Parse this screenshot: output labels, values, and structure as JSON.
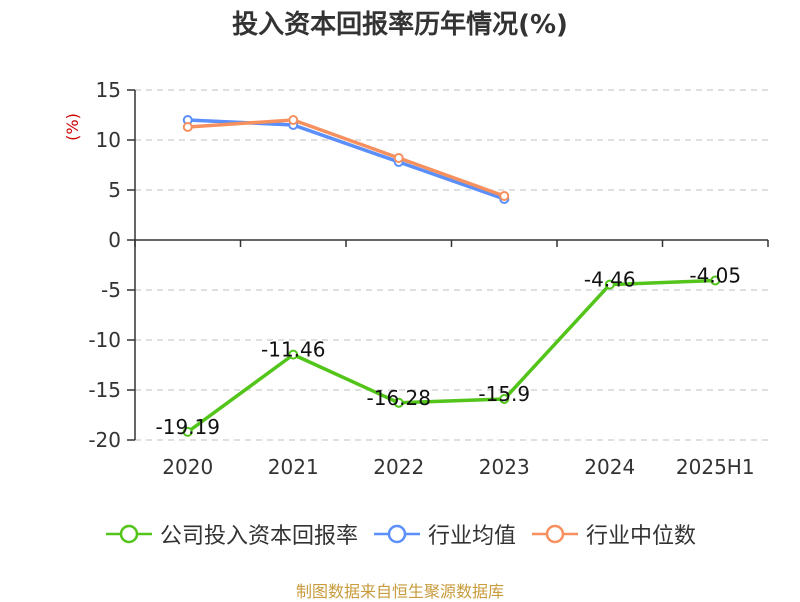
{
  "chart_data": {
    "type": "line",
    "title": "投入资本回报率历年情况(%)",
    "ylabel": "(%)",
    "categories": [
      "2020",
      "2021",
      "2022",
      "2023",
      "2024",
      "2025H1"
    ],
    "ylim": [
      -20,
      15
    ],
    "yticks": [
      15,
      10,
      5,
      0,
      -5,
      -10,
      -15,
      -20
    ],
    "grid": true,
    "legend_position": "bottom",
    "series": [
      {
        "name": "公司投入资本回报率",
        "color": "#52c41a",
        "values": [
          -19.19,
          -11.46,
          -16.28,
          -15.9,
          -4.46,
          -4.05
        ],
        "labels": [
          "-19.19",
          "-11.46",
          "-16.28",
          "-15.9",
          "-4.46",
          "-4.05"
        ]
      },
      {
        "name": "行业均值",
        "color": "#5b8ff9",
        "values": [
          12.0,
          11.5,
          7.8,
          4.1,
          null,
          null
        ]
      },
      {
        "name": "行业中位数",
        "color": "#f6905f",
        "values": [
          11.3,
          12.0,
          8.2,
          4.4,
          null,
          null
        ]
      }
    ]
  },
  "source": "制图数据来自恒生聚源数据库"
}
